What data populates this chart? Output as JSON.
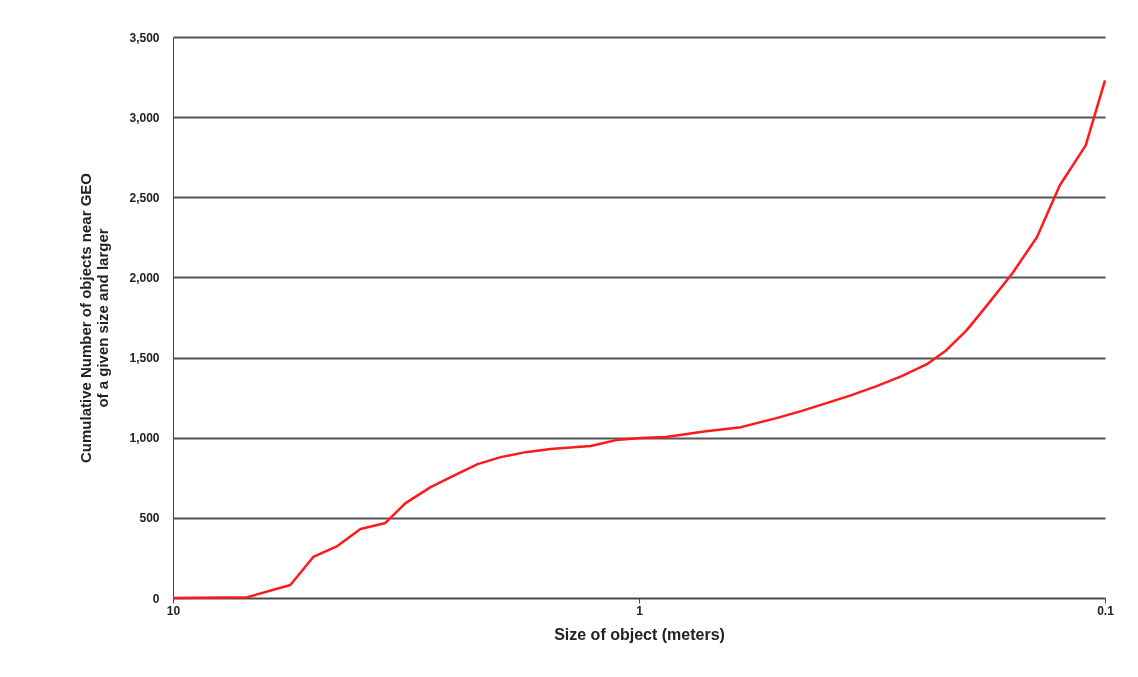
{
  "chart_data": {
    "type": "line",
    "xlabel": "Size of object (meters)",
    "ylabel": "Cumulative Number of objects near GEO\nof a given size and larger",
    "log": "x",
    "grid": "y",
    "marker": "none",
    "line_style": "solid",
    "xlim": [
      10,
      0.1
    ],
    "xticks": [
      10,
      1,
      0.1
    ],
    "ylim": [
      0,
      3500
    ],
    "yticks": [
      0,
      {
        "value": 500,
        "label": "500"
      },
      {
        "value": 1000,
        "label": "1,000"
      },
      {
        "value": 1500,
        "label": "1,500"
      },
      {
        "value": 2000,
        "label": "2,000"
      },
      {
        "value": 2500,
        "label": "2,500"
      },
      {
        "value": 3000,
        "label": "3,000"
      },
      {
        "value": 3500,
        "label": "3,500"
      }
    ],
    "x": [
      10,
      6.93,
      5.6,
      5.0,
      4.44,
      3.96,
      3.5,
      3.17,
      2.8,
      2.51,
      2.22,
      1.98,
      1.75,
      1.55,
      1.27,
      1.12,
      0.99,
      0.875,
      0.718,
      0.604,
      0.507,
      0.449,
      0.396,
      0.35,
      0.309,
      0.273,
      0.241,
      0.219,
      0.198,
      0.179,
      0.158,
      0.14,
      0.125,
      0.11,
      0.1
    ],
    "series": [
      {
        "color": "#ff1a1a",
        "values": [
          0,
          5,
          81,
          256,
          324,
          430,
          468,
          592,
          692,
          760,
          835,
          879,
          910,
          929,
          948,
          985,
          998,
          1004,
          1041,
          1066,
          1122,
          1166,
          1216,
          1266,
          1322,
          1384,
          1459,
          1546,
          1671,
          1827,
          2026,
          2251,
          2575,
          2824,
          3230
        ]
      }
    ]
  }
}
